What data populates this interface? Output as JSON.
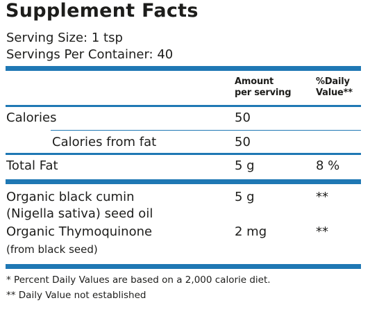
{
  "colors": {
    "rule": "#1f78b4",
    "text": "#1d1d1b"
  },
  "title": "Supplement Facts",
  "serving_size": "Serving Size: 1 tsp",
  "servings_per_container": "Servings Per Container: 40",
  "header": {
    "amount_line1": "Amount",
    "amount_line2": "per serving",
    "dv_line1": "%Daily",
    "dv_line2": "Value**"
  },
  "rows": {
    "calories": {
      "label": "Calories",
      "amount": "50",
      "dv": ""
    },
    "calories_fat": {
      "label": "Calories from fat",
      "amount": "50",
      "dv": ""
    },
    "total_fat": {
      "label": "Total Fat",
      "amount": "5 g",
      "dv": "8 %"
    },
    "cumin": {
      "label_line1": "Organic black cumin",
      "label_line2": "(Nigella sativa) seed oil",
      "amount": "5 g",
      "dv": "**"
    },
    "thymo": {
      "label_line1": "Organic Thymoquinone",
      "label_line2": "(from black seed)",
      "amount": "2 mg",
      "dv": "**"
    }
  },
  "footnotes": {
    "line1": "* Percent Daily Values are based on a 2,000 calorie diet.",
    "line2": "** Daily Value not established"
  }
}
